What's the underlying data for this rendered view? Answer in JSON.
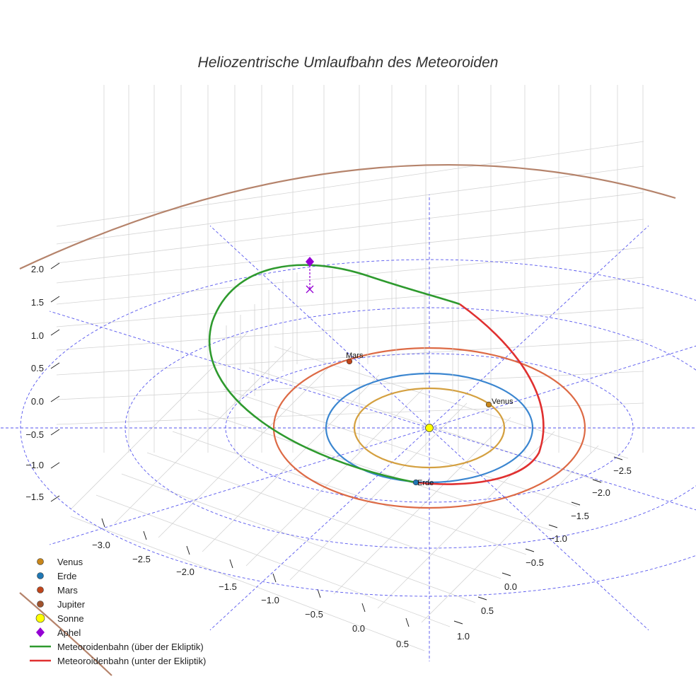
{
  "chart_data": {
    "type": "line",
    "title": "Heliozentrische Umlaufbahn des Meteoroiden",
    "axes": {
      "x_ticks": [
        "−3.0",
        "−2.5",
        "−2.0",
        "−1.5",
        "−1.0",
        "−0.5",
        "0.0",
        "0.5"
      ],
      "y_ticks": [
        "−2.5",
        "−2.0",
        "−1.5",
        "−1.0",
        "−0.5",
        "0.0",
        "0.5",
        "1.0"
      ],
      "z_ticks": [
        "2.0",
        "1.5",
        "1.0",
        "0.5",
        "0.0",
        "−0.5",
        "−1.0",
        "−1.5"
      ],
      "grid": true
    },
    "planets": [
      {
        "name": "Venus",
        "label": "Venus",
        "color": "#c8861a",
        "orbit_color": "#d4a040"
      },
      {
        "name": "Erde",
        "label": "Erde",
        "color": "#1f77b4",
        "orbit_color": "#3b86d0"
      },
      {
        "name": "Mars",
        "label": "Mars",
        "color": "#c0461c",
        "orbit_color": "#dd6a45"
      },
      {
        "name": "Jupiter",
        "label": "",
        "color": "#a0522d",
        "orbit_color": "#b5836b"
      }
    ],
    "sun": {
      "name": "Sonne",
      "color": "#ffff00"
    },
    "aphel": {
      "name": "Aphel",
      "color": "#9400d3"
    },
    "series": [
      {
        "name": "Meteoroidenbahn (über der Ekliptik)",
        "color": "#2e9a2e"
      },
      {
        "name": "Meteoroidenbahn (unter der Ekliptik)",
        "color": "#e03030"
      }
    ],
    "ecliptic_reference": {
      "style": "dashed",
      "color": "#5555ee"
    },
    "legend": {
      "placement": "bottom-left",
      "entries": [
        {
          "label": "Venus",
          "marker": "circle",
          "color": "#c8861a"
        },
        {
          "label": "Erde",
          "marker": "circle",
          "color": "#1f77b4"
        },
        {
          "label": "Mars",
          "marker": "circle",
          "color": "#c0461c"
        },
        {
          "label": "Jupiter",
          "marker": "circle",
          "color": "#a0522d"
        },
        {
          "label": "Sonne",
          "marker": "circle",
          "color": "#ffff00"
        },
        {
          "label": "Aphel",
          "marker": "diamond",
          "color": "#9400d3"
        },
        {
          "label": "Meteoroidenbahn (über der Ekliptik)",
          "marker": "line",
          "color": "#2e9a2e"
        },
        {
          "label": "Meteoroidenbahn (unter der Ekliptik)",
          "marker": "line",
          "color": "#e03030"
        }
      ]
    }
  }
}
